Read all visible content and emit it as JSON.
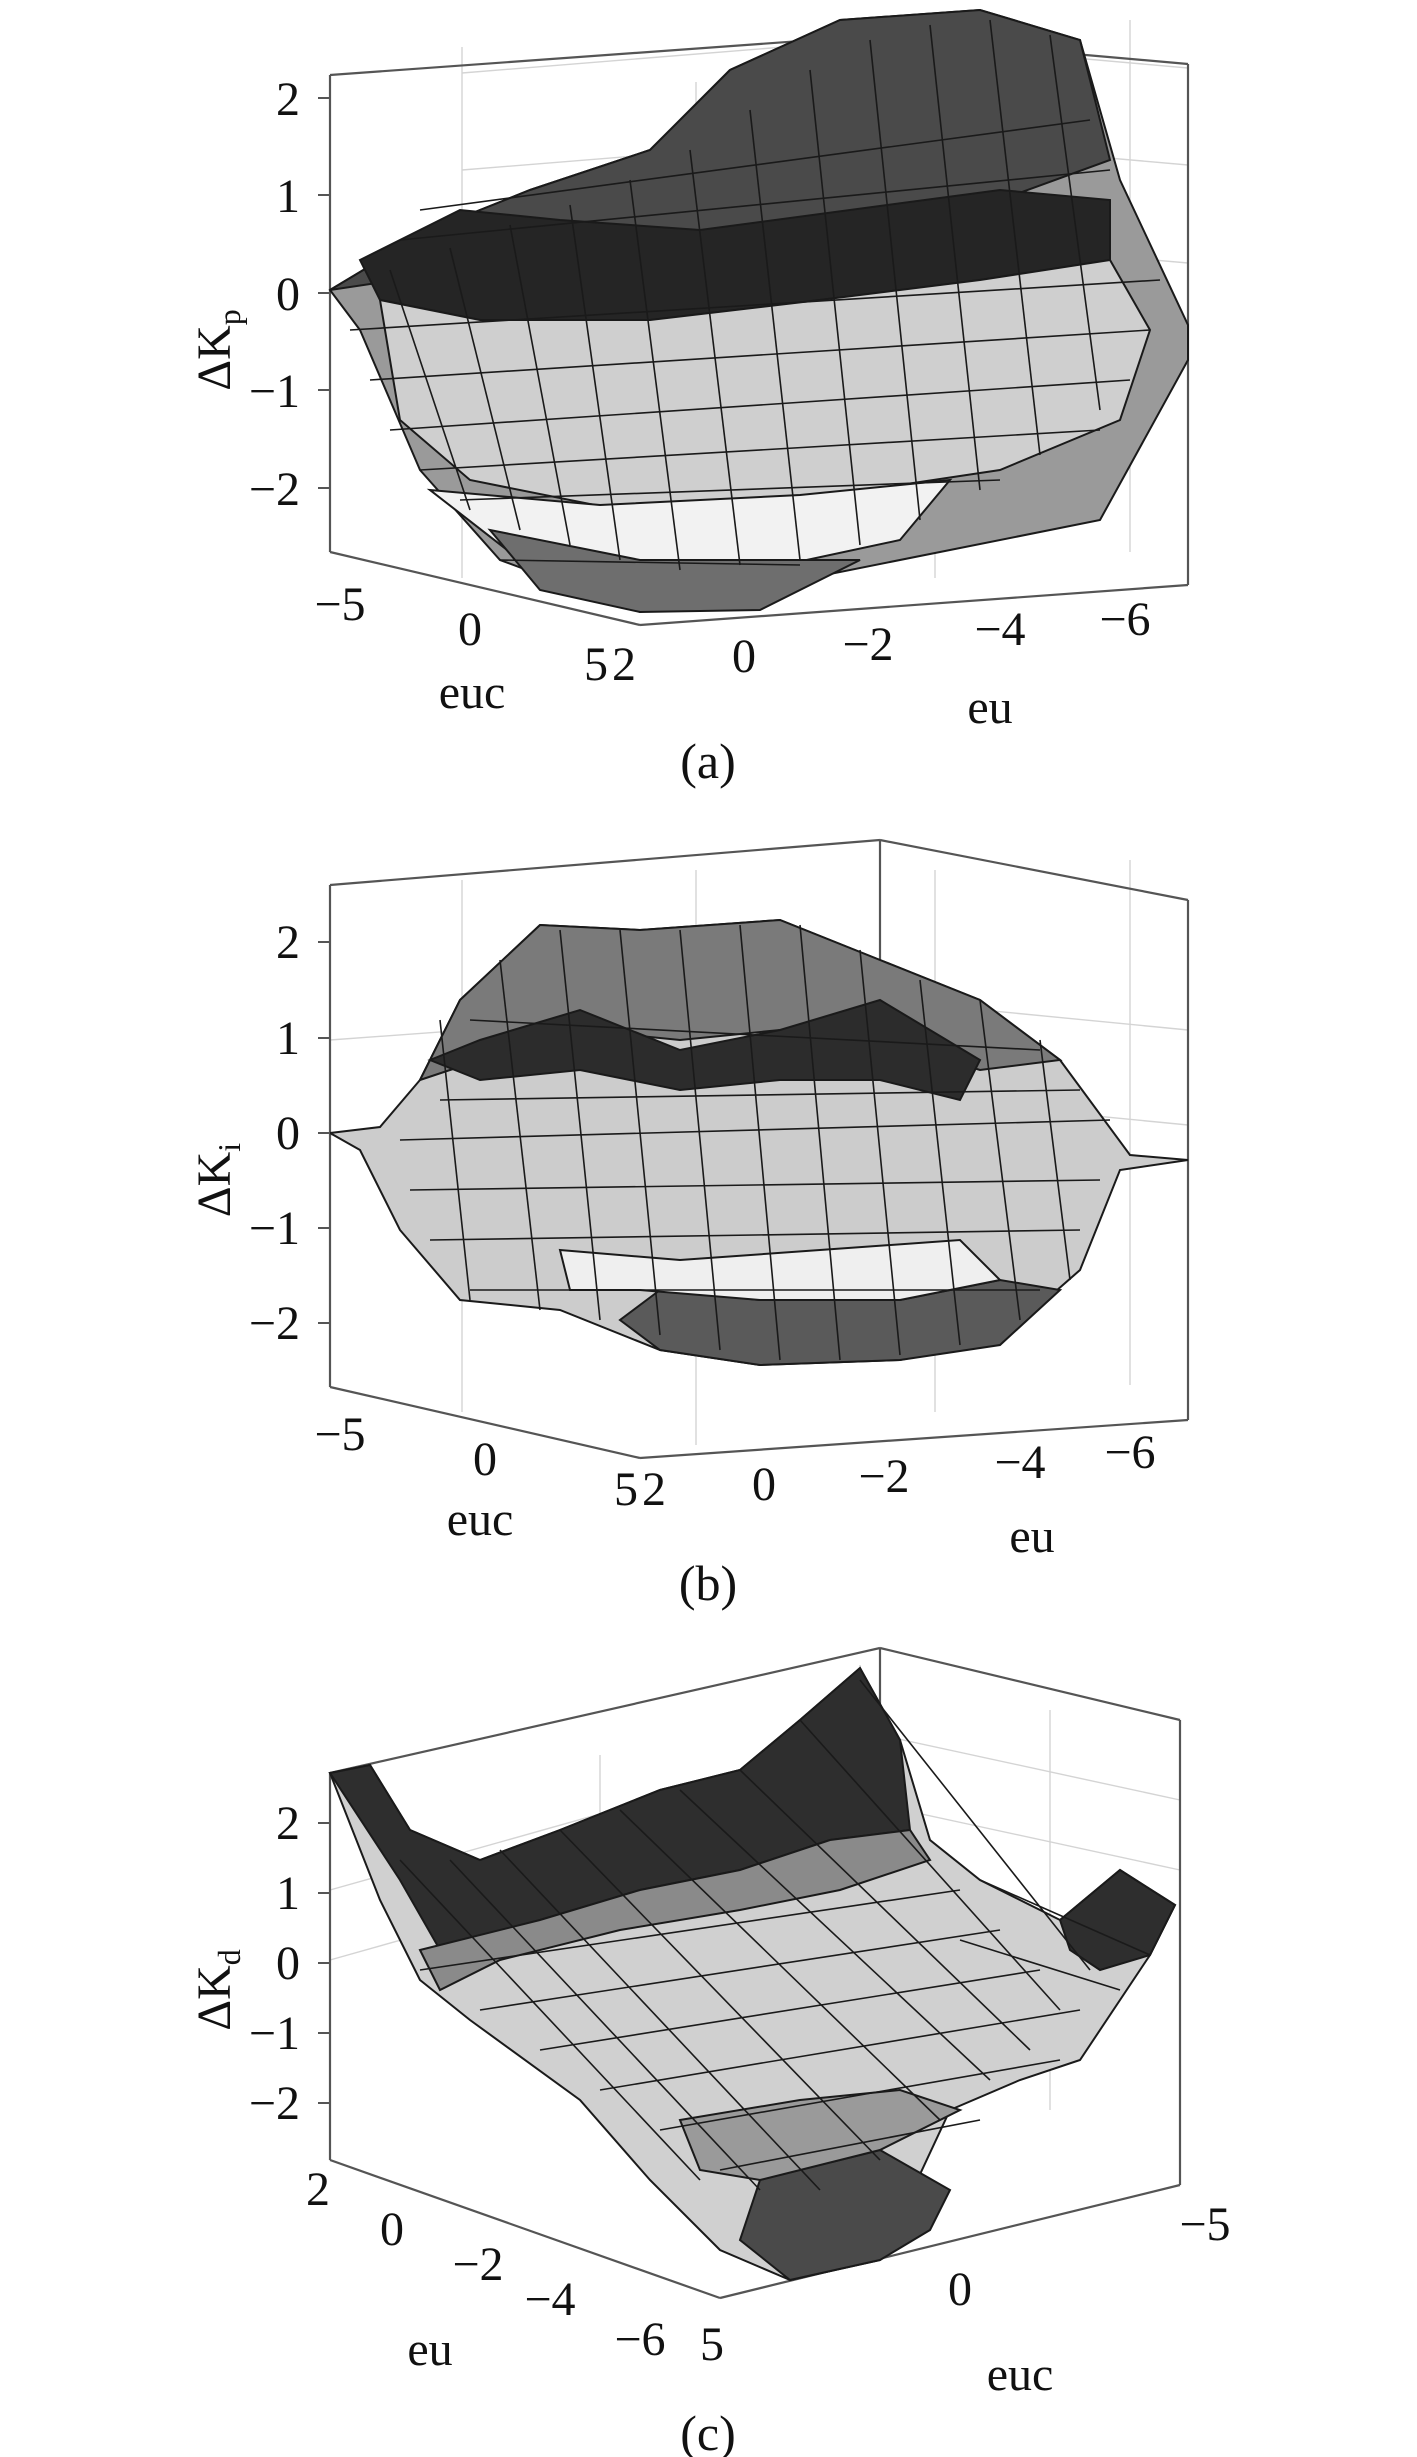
{
  "figure": {
    "panels": [
      {
        "panel_label": "(a)",
        "zlabel_main": "ΔK",
        "zlabel_sub": "p"
      },
      {
        "panel_label": "(b)",
        "zlabel_main": "ΔK",
        "zlabel_sub": "i"
      },
      {
        "panel_label": "(c)",
        "zlabel_main": "ΔK",
        "zlabel_sub": "d"
      }
    ]
  },
  "colors": {
    "background": "#ffffff",
    "axes": "#555555",
    "grid": "#cccccc",
    "mesh_edges": "#1a1a1a",
    "surface_dark": "#2b2b2b",
    "surface_light": "#f4f4f4"
  },
  "chart_data": [
    {
      "type": "surface",
      "title": "",
      "panel_label": "(a)",
      "zlabel": "ΔKp",
      "xlabel": "euc",
      "ylabel": "eu",
      "xlim": [
        -5,
        5
      ],
      "ylim": [
        -6,
        2
      ],
      "zlim": [
        -2.5,
        2.5
      ],
      "zticks": [
        2,
        1,
        0,
        -1,
        -2
      ],
      "zticklabels": [
        "2",
        "1",
        "0",
        "−1",
        "−2"
      ],
      "xticks": [
        -5,
        0,
        5
      ],
      "xticklabels": [
        "−5",
        "0",
        "5"
      ],
      "yticks": [
        2,
        0,
        -2,
        -4,
        -6
      ],
      "yticklabels": [
        "2",
        "0",
        "−2",
        "−4",
        "−6"
      ],
      "grid": true,
      "surface_description": "rule surface rising from about −2.5 at eu = 2 to about +2.5 at eu = −6, varying weakly with euc"
    },
    {
      "type": "surface",
      "title": "",
      "panel_label": "(b)",
      "zlabel": "ΔKi",
      "xlabel": "euc",
      "ylabel": "eu",
      "xlim": [
        -5,
        5
      ],
      "ylim": [
        -6,
        2
      ],
      "zlim": [
        -2.5,
        2.5
      ],
      "zticks": [
        2,
        1,
        0,
        -1,
        -2
      ],
      "zticklabels": [
        "2",
        "1",
        "0",
        "−1",
        "−2"
      ],
      "xticks": [
        -5,
        0,
        5
      ],
      "xticklabels": [
        "−5",
        "0",
        "5"
      ],
      "yticks": [
        2,
        0,
        -2,
        -4,
        -6
      ],
      "yticklabels": [
        "2",
        "0",
        "−2",
        "−4",
        "−6"
      ],
      "grid": true,
      "surface_description": "saddle-like surface: negative near euc = 5, positive near euc = −5, near 0 at the eu extremes"
    },
    {
      "type": "surface",
      "title": "",
      "panel_label": "(c)",
      "zlabel": "ΔKd",
      "xlabel": "euc",
      "ylabel": "eu",
      "xlim": [
        -5,
        5
      ],
      "ylim": [
        -6,
        2
      ],
      "zlim": [
        -2.5,
        2.5
      ],
      "zticks": [
        2,
        1,
        0,
        -1,
        -2
      ],
      "zticklabels": [
        "2",
        "1",
        "0",
        "−1",
        "−2"
      ],
      "xticks": [
        5,
        0,
        -5
      ],
      "xticklabels": [
        "5",
        "0",
        "−5"
      ],
      "yticks": [
        2,
        0,
        -2,
        -4,
        -6
      ],
      "yticklabels": [
        "2",
        "0",
        "−2",
        "−4",
        "−6"
      ],
      "grid": true,
      "surface_description": "bowl-shaped surface: high (≈ +2.5) at the eu = 2 and euc = −5 edges, low (≈ −2.5) near euc = 0, eu = −6"
    }
  ]
}
